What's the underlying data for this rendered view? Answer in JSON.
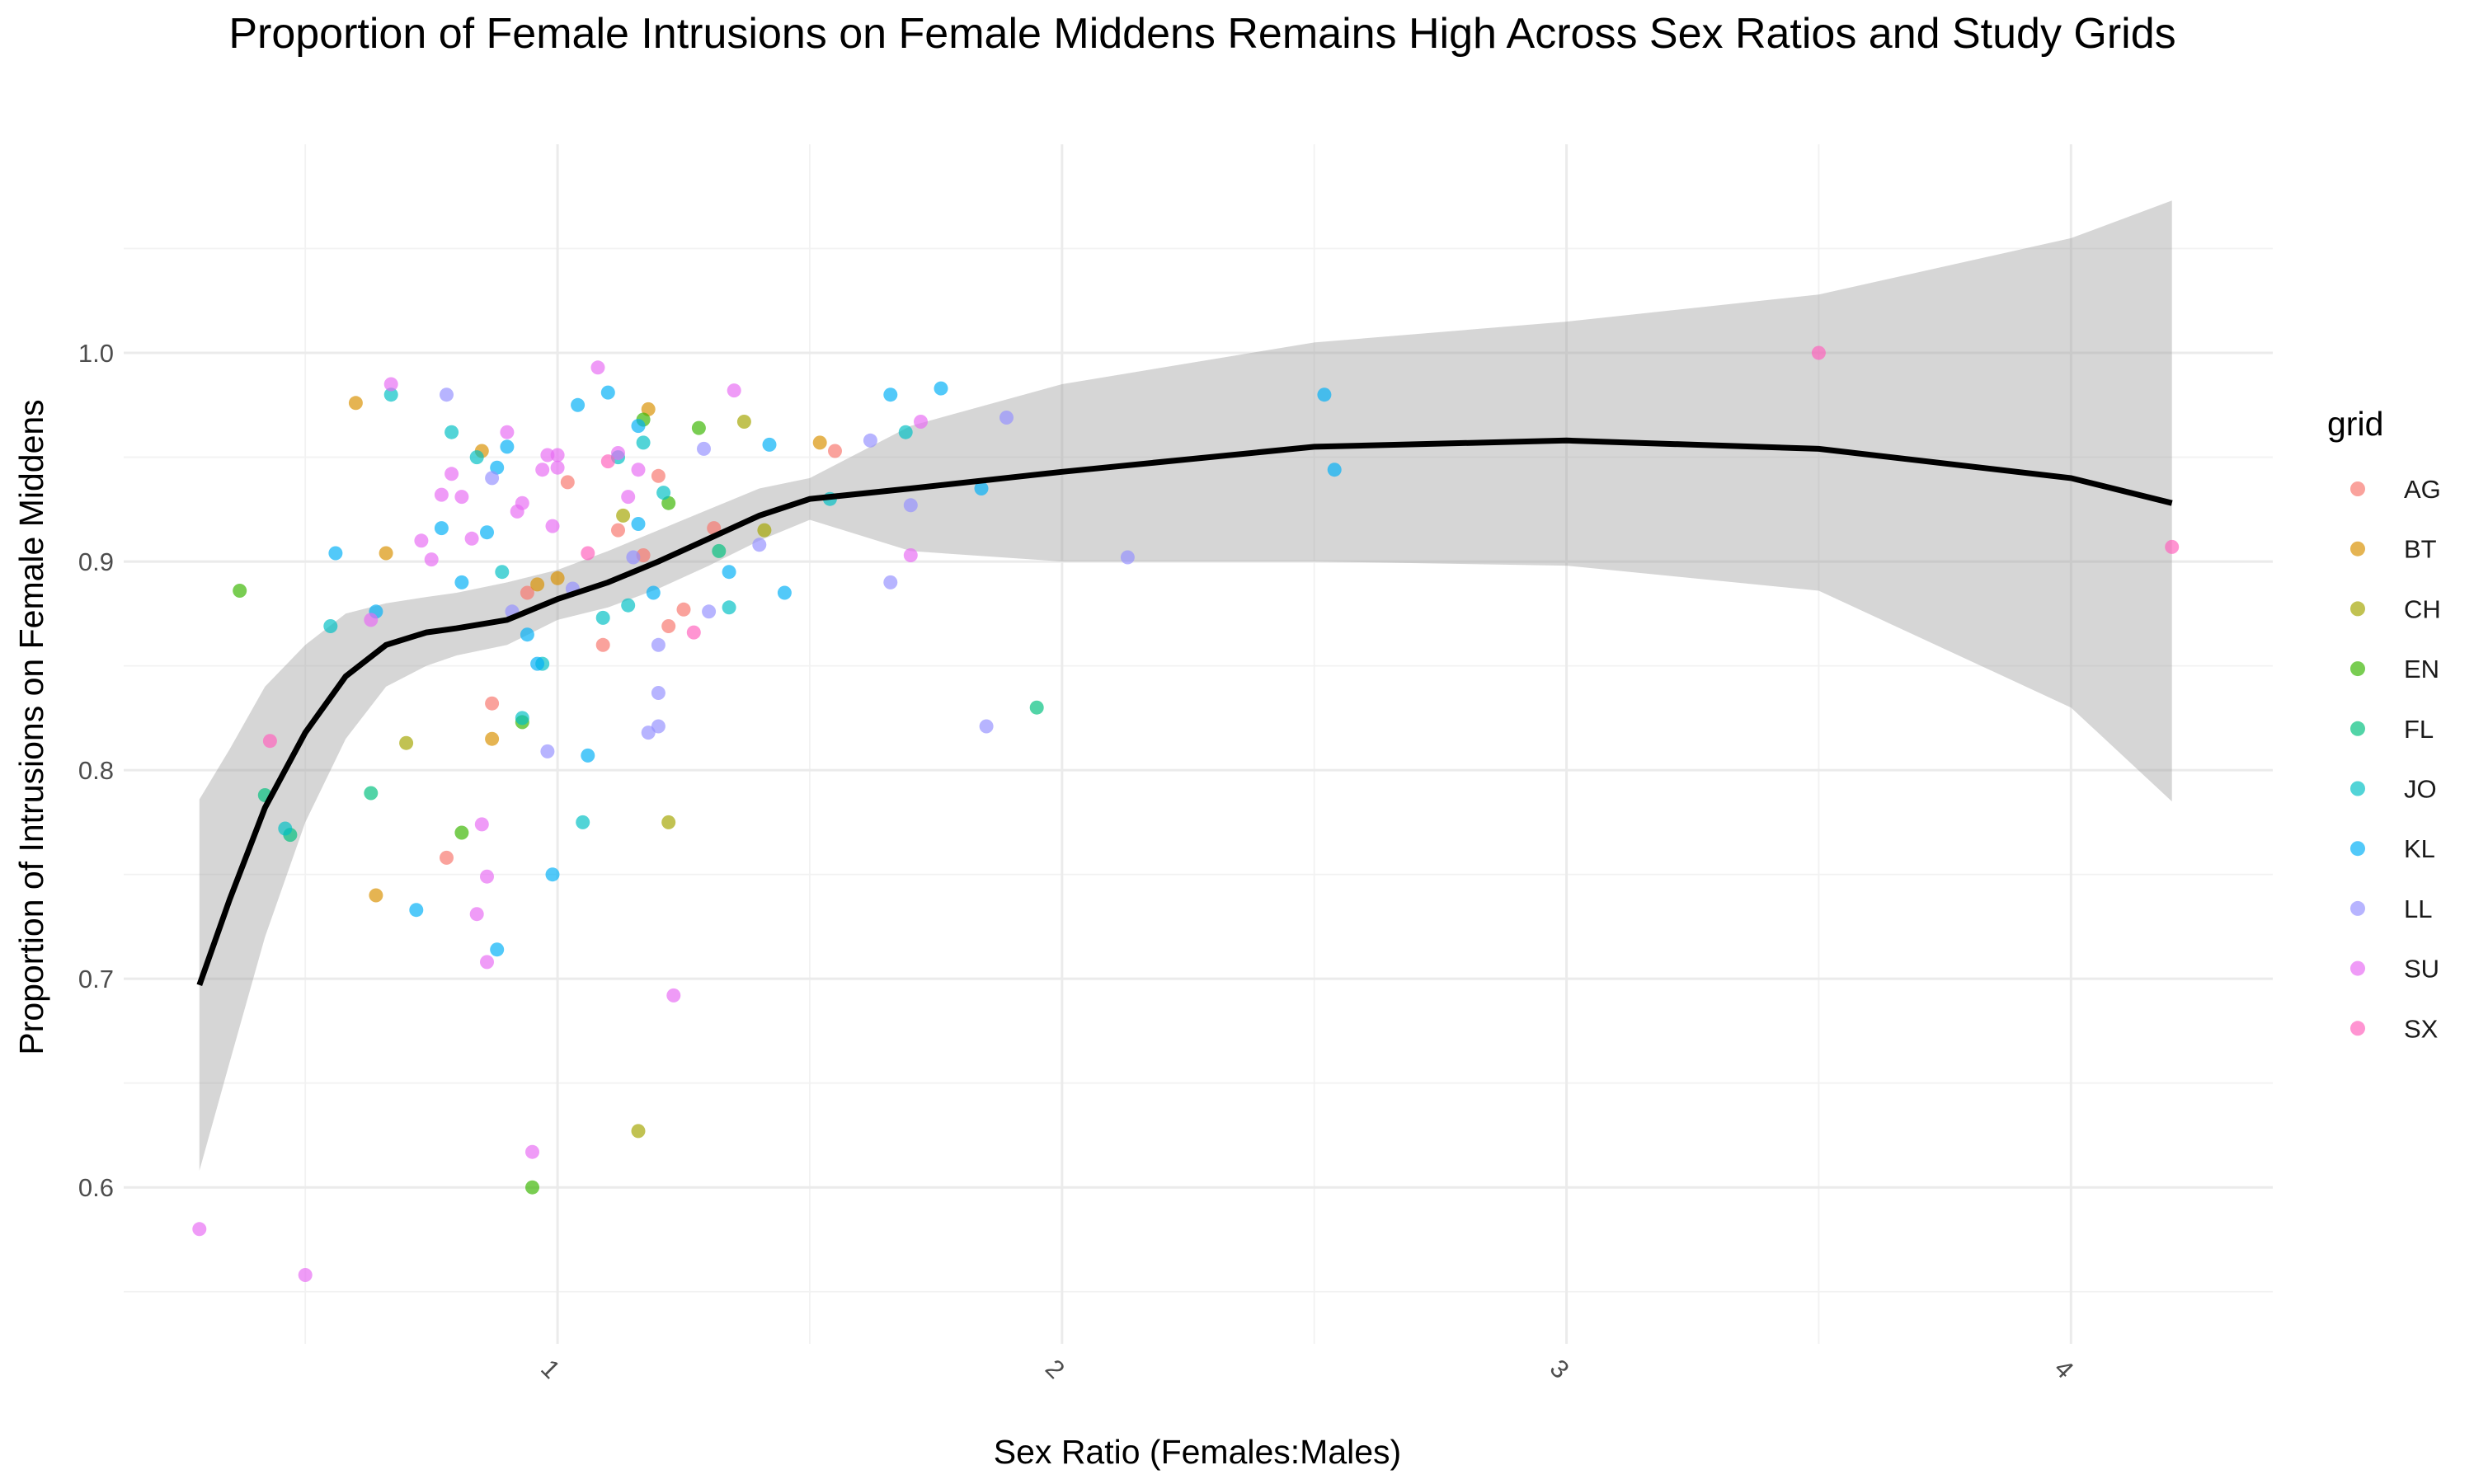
{
  "chart_data": {
    "type": "scatter",
    "title": "Proportion of Female Intrusions on Female Middens Remains High Across Sex Ratios and Study Grids",
    "xlabel": "Sex Ratio (Females:Males)",
    "ylabel": "Proportion of Intrusions on Female Middens",
    "xlim": [
      0.14,
      4.4
    ],
    "ylim": [
      0.525,
      1.1
    ],
    "x_ticks": [
      "1",
      "2",
      "3",
      "4"
    ],
    "y_ticks": [
      "0.6",
      "0.7",
      "0.8",
      "0.9",
      "1.0"
    ],
    "x_tick_rotation": -45,
    "grid": true,
    "legend": {
      "title": "grid",
      "position": "right",
      "entries": [
        {
          "name": "AG",
          "color": "#F8766D"
        },
        {
          "name": "BT",
          "color": "#D89000"
        },
        {
          "name": "CH",
          "color": "#A3A500"
        },
        {
          "name": "EN",
          "color": "#39B600"
        },
        {
          "name": "FL",
          "color": "#00BF7D"
        },
        {
          "name": "JO",
          "color": "#00BFC4"
        },
        {
          "name": "KL",
          "color": "#00B0F6"
        },
        {
          "name": "LL",
          "color": "#9590FF"
        },
        {
          "name": "SU",
          "color": "#E76BF3"
        },
        {
          "name": "SX",
          "color": "#FF62BC"
        }
      ]
    },
    "series": [
      {
        "name": "AG",
        "points": [
          [
            0.78,
            0.758
          ],
          [
            0.87,
            0.832
          ],
          [
            0.94,
            0.885
          ],
          [
            1.02,
            0.938
          ],
          [
            1.09,
            0.86
          ],
          [
            1.12,
            0.915
          ],
          [
            1.17,
            0.903
          ],
          [
            1.2,
            0.941
          ],
          [
            1.22,
            0.869
          ],
          [
            1.25,
            0.877
          ],
          [
            1.31,
            0.916
          ],
          [
            1.55,
            0.953
          ]
        ]
      },
      {
        "name": "BT",
        "points": [
          [
            0.6,
            0.976
          ],
          [
            0.64,
            0.74
          ],
          [
            0.66,
            0.904
          ],
          [
            0.85,
            0.953
          ],
          [
            0.87,
            0.815
          ],
          [
            0.96,
            0.889
          ],
          [
            1.0,
            0.892
          ],
          [
            1.18,
            0.973
          ],
          [
            1.52,
            0.957
          ]
        ]
      },
      {
        "name": "CH",
        "points": [
          [
            0.7,
            0.813
          ],
          [
            1.13,
            0.922
          ],
          [
            1.16,
            0.627
          ],
          [
            1.22,
            0.775
          ],
          [
            1.37,
            0.967
          ],
          [
            1.41,
            0.915
          ]
        ]
      },
      {
        "name": "EN",
        "points": [
          [
            0.37,
            0.886
          ],
          [
            0.81,
            0.77
          ],
          [
            0.93,
            0.823
          ],
          [
            0.95,
            0.6
          ],
          [
            1.17,
            0.968
          ],
          [
            1.28,
            0.964
          ],
          [
            1.22,
            0.928
          ]
        ]
      },
      {
        "name": "FL",
        "points": [
          [
            0.42,
            0.788
          ],
          [
            0.47,
            0.769
          ],
          [
            0.63,
            0.789
          ],
          [
            1.95,
            0.83
          ],
          [
            1.32,
            0.905
          ]
        ]
      },
      {
        "name": "JO",
        "points": [
          [
            0.46,
            0.772
          ],
          [
            0.55,
            0.869
          ],
          [
            0.67,
            0.98
          ],
          [
            0.79,
            0.962
          ],
          [
            0.84,
            0.95
          ],
          [
            0.89,
            0.895
          ],
          [
            0.93,
            0.825
          ],
          [
            0.97,
            0.851
          ],
          [
            1.05,
            0.775
          ],
          [
            1.09,
            0.873
          ],
          [
            1.12,
            0.95
          ],
          [
            1.14,
            0.879
          ],
          [
            1.17,
            0.957
          ],
          [
            1.21,
            0.933
          ],
          [
            1.34,
            0.878
          ],
          [
            1.54,
            0.93
          ],
          [
            1.69,
            0.962
          ]
        ]
      },
      {
        "name": "KL",
        "points": [
          [
            0.56,
            0.904
          ],
          [
            0.64,
            0.876
          ],
          [
            0.72,
            0.733
          ],
          [
            0.77,
            0.916
          ],
          [
            0.81,
            0.89
          ],
          [
            0.86,
            0.914
          ],
          [
            0.88,
            0.945
          ],
          [
            0.9,
            0.955
          ],
          [
            0.94,
            0.865
          ],
          [
            0.96,
            0.851
          ],
          [
            0.99,
            0.75
          ],
          [
            1.04,
            0.975
          ],
          [
            1.06,
            0.807
          ],
          [
            1.1,
            0.981
          ],
          [
            1.16,
            0.918
          ],
          [
            1.19,
            0.885
          ],
          [
            1.34,
            0.895
          ],
          [
            1.42,
            0.956
          ],
          [
            1.45,
            0.885
          ],
          [
            1.66,
            0.98
          ],
          [
            1.76,
            0.983
          ],
          [
            1.84,
            0.935
          ],
          [
            2.54,
            0.944
          ],
          [
            2.52,
            0.98
          ],
          [
            0.88,
            0.714
          ],
          [
            1.16,
            0.965
          ]
        ]
      },
      {
        "name": "LL",
        "points": [
          [
            0.78,
            0.98
          ],
          [
            0.87,
            0.94
          ],
          [
            0.91,
            0.876
          ],
          [
            0.98,
            0.809
          ],
          [
            1.03,
            0.887
          ],
          [
            1.15,
            0.902
          ],
          [
            1.2,
            0.837
          ],
          [
            1.2,
            0.821
          ],
          [
            1.18,
            0.818
          ],
          [
            1.2,
            0.86
          ],
          [
            1.3,
            0.876
          ],
          [
            1.29,
            0.954
          ],
          [
            1.4,
            0.908
          ],
          [
            1.62,
            0.958
          ],
          [
            1.66,
            0.89
          ],
          [
            1.7,
            0.927
          ],
          [
            1.85,
            0.821
          ],
          [
            1.89,
            0.969
          ],
          [
            2.13,
            0.902
          ]
        ]
      },
      {
        "name": "SU",
        "points": [
          [
            0.29,
            0.58
          ],
          [
            0.5,
            0.558
          ],
          [
            0.63,
            0.872
          ],
          [
            0.67,
            0.985
          ],
          [
            0.73,
            0.91
          ],
          [
            0.75,
            0.901
          ],
          [
            0.77,
            0.932
          ],
          [
            0.79,
            0.942
          ],
          [
            0.81,
            0.931
          ],
          [
            0.83,
            0.911
          ],
          [
            0.85,
            0.774
          ],
          [
            0.86,
            0.749
          ],
          [
            0.84,
            0.731
          ],
          [
            0.9,
            0.962
          ],
          [
            0.92,
            0.924
          ],
          [
            0.93,
            0.928
          ],
          [
            0.95,
            0.617
          ],
          [
            0.97,
            0.944
          ],
          [
            0.98,
            0.951
          ],
          [
            0.99,
            0.917
          ],
          [
            1.0,
            0.951
          ],
          [
            1.0,
            0.945
          ],
          [
            1.08,
            0.993
          ],
          [
            1.12,
            0.952
          ],
          [
            1.14,
            0.931
          ],
          [
            1.16,
            0.944
          ],
          [
            1.23,
            0.692
          ],
          [
            1.35,
            0.982
          ],
          [
            1.72,
            0.967
          ],
          [
            1.7,
            0.903
          ],
          [
            0.86,
            0.708
          ]
        ]
      },
      {
        "name": "SX",
        "points": [
          [
            0.43,
            0.814
          ],
          [
            3.5,
            1.0
          ],
          [
            4.2,
            0.907
          ],
          [
            1.06,
            0.904
          ],
          [
            1.27,
            0.866
          ],
          [
            1.1,
            0.948
          ]
        ]
      }
    ],
    "smooth": {
      "color": "#000000",
      "x": [
        0.29,
        0.35,
        0.42,
        0.5,
        0.58,
        0.66,
        0.74,
        0.8,
        0.9,
        1.0,
        1.1,
        1.2,
        1.3,
        1.4,
        1.5,
        1.7,
        2.0,
        2.5,
        3.0,
        3.5,
        4.0,
        4.2
      ],
      "y": [
        0.697,
        0.738,
        0.782,
        0.818,
        0.845,
        0.86,
        0.866,
        0.868,
        0.872,
        0.882,
        0.89,
        0.9,
        0.911,
        0.922,
        0.93,
        0.935,
        0.943,
        0.955,
        0.958,
        0.954,
        0.94,
        0.928
      ],
      "ci_lower": [
        0.608,
        0.66,
        0.72,
        0.775,
        0.815,
        0.84,
        0.85,
        0.855,
        0.86,
        0.872,
        0.878,
        0.887,
        0.898,
        0.91,
        0.92,
        0.905,
        0.9,
        0.9,
        0.898,
        0.886,
        0.83,
        0.785
      ],
      "ci_upper": [
        0.786,
        0.81,
        0.84,
        0.86,
        0.875,
        0.88,
        0.883,
        0.885,
        0.89,
        0.896,
        0.905,
        0.915,
        0.925,
        0.935,
        0.94,
        0.965,
        0.985,
        1.005,
        1.015,
        1.028,
        1.055,
        1.073
      ]
    }
  }
}
